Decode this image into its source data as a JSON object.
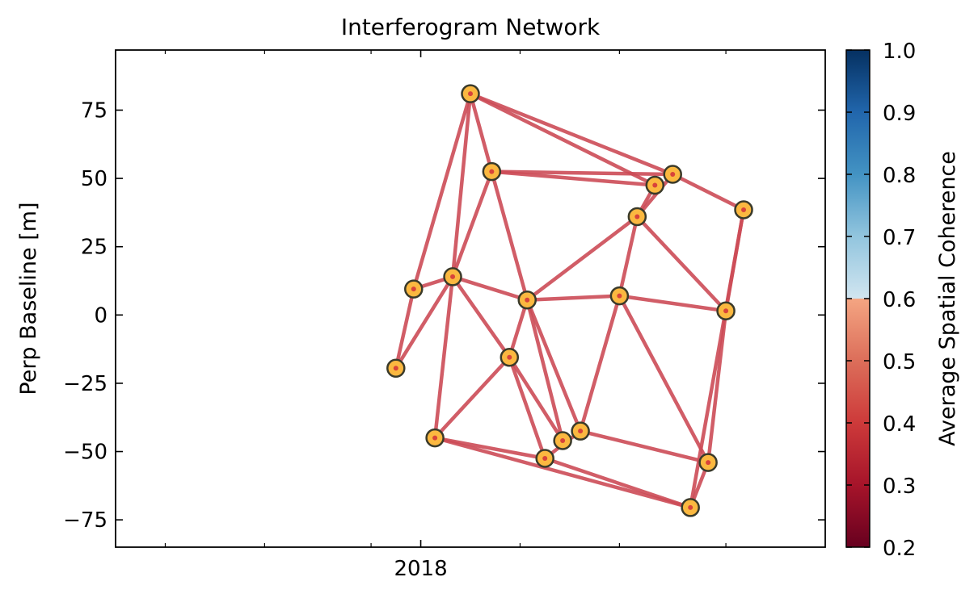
{
  "chart_data": {
    "type": "scatter",
    "title": "Interferogram Network",
    "xlabel": "",
    "ylabel": "Perp Baseline [m]",
    "x_tick_labels": [
      "2018"
    ],
    "y_ticks": [
      -75,
      -50,
      -25,
      0,
      25,
      50,
      75
    ],
    "y_tick_labels": [
      "−75",
      "−50",
      "−25",
      "0",
      "25",
      "50",
      "75"
    ],
    "ylim": [
      -85,
      97
    ],
    "grid": false,
    "colorbar": {
      "label": "Average Spatial Coherence",
      "range": [
        0.2,
        1.0
      ],
      "ticks": [
        0.2,
        0.3,
        0.4,
        0.5,
        0.6,
        0.7,
        0.8,
        0.9,
        1.0
      ],
      "tick_labels": [
        "0.2",
        "0.3",
        "0.4",
        "0.5",
        "0.6",
        "0.7",
        "0.8",
        "0.9",
        "1.0"
      ],
      "colormap": "RdBu, upper portion desaturated above 0.7"
    },
    "acquisitions": [
      {
        "id": 0,
        "x": 0.395,
        "y": -19.5
      },
      {
        "id": 1,
        "x": 0.42,
        "y": 9.5
      },
      {
        "id": 2,
        "x": 0.45,
        "y": -45.0
      },
      {
        "id": 3,
        "x": 0.475,
        "y": 14.0
      },
      {
        "id": 4,
        "x": 0.5,
        "y": 81.0
      },
      {
        "id": 5,
        "x": 0.53,
        "y": 52.5
      },
      {
        "id": 6,
        "x": 0.555,
        "y": -15.5
      },
      {
        "id": 7,
        "x": 0.58,
        "y": 5.5
      },
      {
        "id": 8,
        "x": 0.605,
        "y": -52.5
      },
      {
        "id": 9,
        "x": 0.63,
        "y": -46.0
      },
      {
        "id": 10,
        "x": 0.655,
        "y": -42.5
      },
      {
        "id": 11,
        "x": 0.71,
        "y": 7.0
      },
      {
        "id": 12,
        "x": 0.735,
        "y": 36.0
      },
      {
        "id": 13,
        "x": 0.76,
        "y": 47.5
      },
      {
        "id": 14,
        "x": 0.785,
        "y": 51.5
      },
      {
        "id": 15,
        "x": 0.81,
        "y": -70.5
      },
      {
        "id": 16,
        "x": 0.835,
        "y": -54.0
      },
      {
        "id": 17,
        "x": 0.86,
        "y": 1.5
      },
      {
        "id": 18,
        "x": 0.885,
        "y": 38.5
      }
    ],
    "pairs": [
      [
        0,
        1
      ],
      [
        0,
        3
      ],
      [
        1,
        3
      ],
      [
        1,
        4
      ],
      [
        2,
        3
      ],
      [
        2,
        6
      ],
      [
        2,
        8
      ],
      [
        2,
        15
      ],
      [
        3,
        4
      ],
      [
        3,
        5
      ],
      [
        3,
        7
      ],
      [
        3,
        6
      ],
      [
        4,
        5
      ],
      [
        4,
        13
      ],
      [
        4,
        14
      ],
      [
        5,
        7
      ],
      [
        5,
        13
      ],
      [
        5,
        14
      ],
      [
        6,
        7
      ],
      [
        6,
        9
      ],
      [
        6,
        8
      ],
      [
        7,
        12
      ],
      [
        7,
        11
      ],
      [
        7,
        9
      ],
      [
        7,
        10
      ],
      [
        8,
        10
      ],
      [
        8,
        15
      ],
      [
        10,
        11
      ],
      [
        10,
        16
      ],
      [
        11,
        12
      ],
      [
        11,
        17
      ],
      [
        11,
        16
      ],
      [
        12,
        13
      ],
      [
        12,
        14
      ],
      [
        12,
        17
      ],
      [
        14,
        18
      ],
      [
        16,
        17
      ],
      [
        17,
        18
      ],
      [
        15,
        16
      ],
      [
        15,
        18
      ]
    ],
    "pair_coherence": 0.5,
    "colors": {
      "edge": "#cc4b57",
      "marker_fill": "#fbb840",
      "marker_edge": "#3a3a2a",
      "marker_center": "#d8433a"
    }
  }
}
